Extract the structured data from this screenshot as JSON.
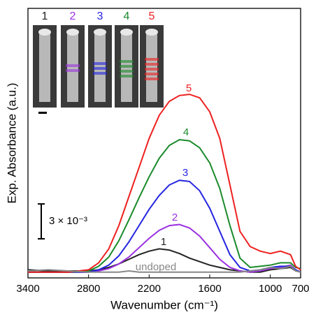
{
  "chart_data": {
    "type": "line",
    "x_label": "Wavenumber (cm⁻¹)",
    "y_label": "Exp. Absorbance (a.u.)",
    "x": [
      3400,
      3200,
      3000,
      2800,
      2700,
      2600,
      2500,
      2400,
      2300,
      2200,
      2100,
      2000,
      1900,
      1800,
      1700,
      1600,
      1500,
      1400,
      1300,
      1200,
      1100,
      1000,
      900,
      800,
      750,
      700
    ],
    "xlim": [
      3400,
      700
    ],
    "xticks": [
      3400,
      2800,
      2200,
      1600,
      1000,
      700
    ],
    "ylim": [
      -0.0005,
      0.0227
    ],
    "scale_bar": {
      "value": 0.003,
      "label": "3 × 10⁻³"
    },
    "series": [
      {
        "name": "1",
        "color": "#222222",
        "values": [
          0.0002,
          0.0001,
          0.0001,
          0.0001,
          0.0002,
          0.0004,
          0.0007,
          0.0011,
          0.0015,
          0.0018,
          0.002,
          0.0019,
          0.0016,
          0.0012,
          0.0009,
          0.0006,
          0.0004,
          0.0002,
          0.0001,
          0.0,
          0.0,
          0.0002,
          0.0003,
          0.0004,
          0.0001,
          0.0
        ]
      },
      {
        "name": "2",
        "color": "#9b30e0",
        "values": [
          0.0,
          0.0,
          0.0,
          0.0,
          0.0001,
          0.0003,
          0.0007,
          0.0013,
          0.0021,
          0.0029,
          0.0036,
          0.004,
          0.0041,
          0.0038,
          0.0031,
          0.0021,
          0.0011,
          0.0004,
          0.0001,
          0.0,
          0.0001,
          0.0003,
          0.0004,
          0.0006,
          0.0002,
          0.0
        ]
      },
      {
        "name": "3",
        "color": "#2424e0",
        "values": [
          0.0,
          0.0,
          0.0,
          0.0,
          0.0002,
          0.0006,
          0.0014,
          0.0026,
          0.004,
          0.0054,
          0.0066,
          0.0075,
          0.0079,
          0.0078,
          0.007,
          0.0055,
          0.0035,
          0.0015,
          0.0004,
          0.0001,
          0.0002,
          0.0004,
          0.0005,
          0.0005,
          0.0002,
          0.0
        ]
      },
      {
        "name": "4",
        "color": "#1a8a2a",
        "values": [
          0.0,
          0.0,
          0.0,
          0.0001,
          0.0005,
          0.0013,
          0.0027,
          0.0045,
          0.0064,
          0.0082,
          0.0098,
          0.0109,
          0.0114,
          0.0113,
          0.0107,
          0.0094,
          0.0072,
          0.004,
          0.0012,
          0.0004,
          0.0005,
          0.0006,
          0.0008,
          0.0008,
          0.0004,
          0.0003
        ]
      },
      {
        "name": "5",
        "color": "#ee2020",
        "values": [
          0.0,
          0.0,
          0.0,
          0.0002,
          0.0008,
          0.002,
          0.004,
          0.0065,
          0.009,
          0.0115,
          0.0135,
          0.0147,
          0.0152,
          0.0153,
          0.015,
          0.0138,
          0.0115,
          0.0075,
          0.0035,
          0.0022,
          0.0018,
          0.0016,
          0.0018,
          0.0015,
          0.0005,
          0.0002
        ]
      },
      {
        "name": "undoped",
        "color": "#888888",
        "values": [
          0.0001,
          0.0002,
          0.0001,
          0.0,
          0.0,
          0.0,
          0.0,
          0.0001,
          0.0,
          0.0,
          0.0,
          0.0,
          0.0,
          0.0,
          0.0,
          0.0,
          0.0,
          0.0,
          0.0,
          0.0001,
          0.0002,
          0.0004,
          0.0003,
          0.0005,
          0.0001,
          0.0
        ]
      }
    ]
  }
}
